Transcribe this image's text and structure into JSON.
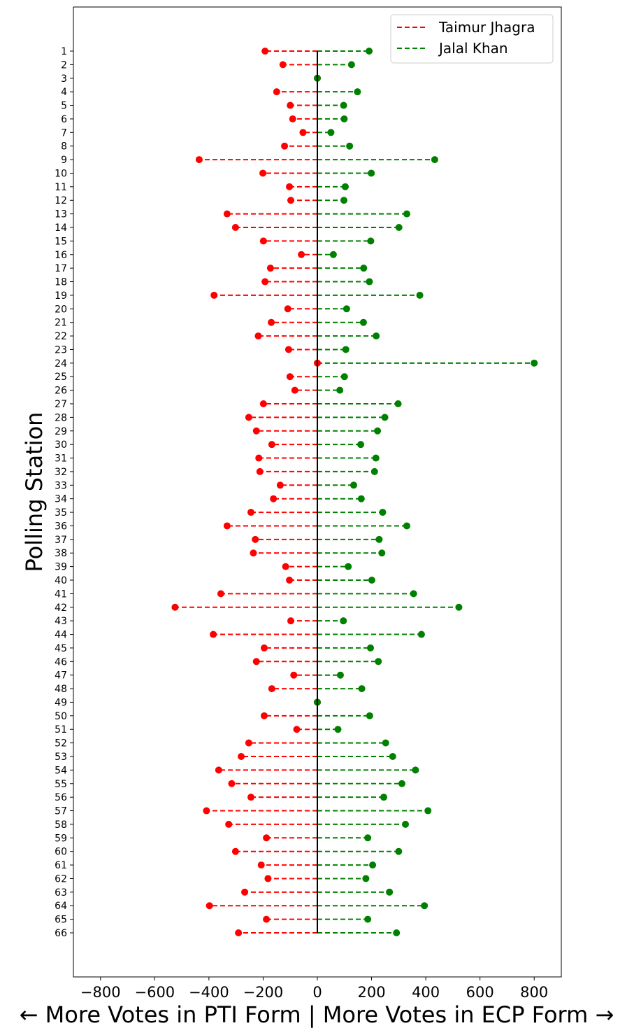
{
  "chart_data": {
    "type": "scatter",
    "subtype": "diverging-dumbbell",
    "title": "",
    "xlabel": "← More Votes in PTI Form | More Votes in ECP Form →",
    "ylabel": "Polling Station",
    "xlim": [
      -900,
      900
    ],
    "xticks": [
      -800,
      -600,
      -400,
      -200,
      0,
      200,
      400,
      600,
      800
    ],
    "xtick_labels": [
      "−800",
      "−600",
      "−400",
      "−200",
      "0",
      "200",
      "400",
      "600",
      "800"
    ],
    "grid": false,
    "legend_position": "top-right",
    "zero_line": true,
    "colors": {
      "taimur": "#ff0000",
      "jalal": "#008000",
      "zero_line": "#000000"
    },
    "categories": [
      "1",
      "2",
      "3",
      "4",
      "5",
      "6",
      "7",
      "8",
      "9",
      "10",
      "11",
      "12",
      "13",
      "14",
      "15",
      "16",
      "17",
      "18",
      "19",
      "20",
      "21",
      "22",
      "23",
      "24",
      "25",
      "26",
      "27",
      "28",
      "29",
      "30",
      "31",
      "32",
      "33",
      "34",
      "35",
      "36",
      "37",
      "38",
      "39",
      "40",
      "41",
      "42",
      "43",
      "44",
      "45",
      "46",
      "47",
      "48",
      "49",
      "50",
      "51",
      "52",
      "53",
      "54",
      "55",
      "56",
      "57",
      "58",
      "59",
      "60",
      "61",
      "62",
      "63",
      "64",
      "65",
      "66"
    ],
    "series": [
      {
        "name": "Taimur Jhagra",
        "color": "#ff0000",
        "linestyle": "dashed",
        "values": [
          -193,
          -127,
          0,
          -150,
          -100,
          -91,
          -53,
          -121,
          -436,
          -201,
          -103,
          -98,
          -333,
          -302,
          -199,
          -59,
          -173,
          -193,
          -381,
          -109,
          -170,
          -218,
          -106,
          0,
          -101,
          -83,
          -199,
          -253,
          -225,
          -168,
          -216,
          -212,
          -137,
          -162,
          -245,
          -333,
          -229,
          -236,
          -117,
          -103,
          -356,
          -525,
          -98,
          -384,
          -196,
          -225,
          -87,
          -168,
          0,
          -196,
          -76,
          -253,
          -281,
          -364,
          -316,
          -245,
          -409,
          -327,
          -188,
          -302,
          -207,
          -182,
          -268,
          -398,
          -188,
          -291
        ]
      },
      {
        "name": "Jalal Khan",
        "color": "#008000",
        "linestyle": "dashed",
        "values": [
          191,
          126,
          0,
          148,
          97,
          99,
          50,
          119,
          433,
          199,
          103,
          98,
          330,
          301,
          197,
          59,
          171,
          192,
          378,
          108,
          170,
          217,
          105,
          800,
          100,
          83,
          298,
          249,
          222,
          160,
          216,
          211,
          134,
          162,
          241,
          330,
          228,
          238,
          114,
          201,
          355,
          522,
          96,
          384,
          196,
          225,
          85,
          164,
          0,
          193,
          76,
          252,
          278,
          362,
          312,
          245,
          408,
          325,
          186,
          300,
          204,
          179,
          266,
          395,
          186,
          292
        ]
      }
    ]
  }
}
